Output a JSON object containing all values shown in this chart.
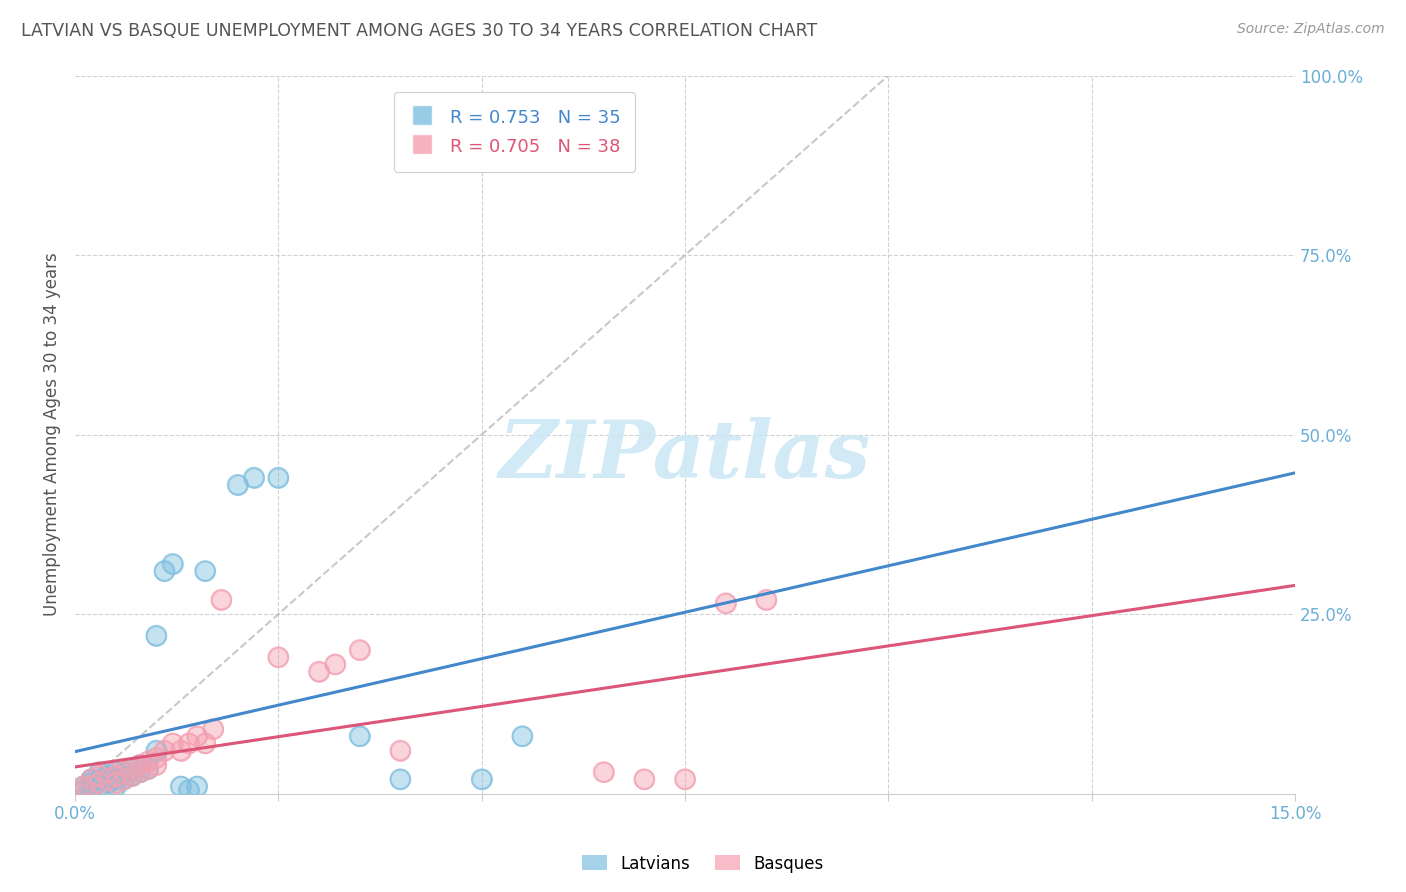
{
  "title": "LATVIAN VS BASQUE UNEMPLOYMENT AMONG AGES 30 TO 34 YEARS CORRELATION CHART",
  "source": "Source: ZipAtlas.com",
  "ylabel": "Unemployment Among Ages 30 to 34 years",
  "xlim": [
    0.0,
    0.15
  ],
  "ylim": [
    0.0,
    1.0
  ],
  "latvian_R": 0.753,
  "latvian_N": 35,
  "basque_R": 0.705,
  "basque_N": 38,
  "latvian_color": "#7fbfdf",
  "basque_color": "#f4a0b0",
  "latvian_line_color": "#4488cc",
  "basque_line_color": "#dd5577",
  "diag_color": "#bbbbbb",
  "watermark": "ZIPatlas",
  "title_color": "#555555",
  "source_color": "#999999",
  "axis_label_color": "#6baed6",
  "grid_color": "#cccccc",
  "latvian_x": [
    0.001,
    0.001,
    0.002,
    0.002,
    0.002,
    0.003,
    0.003,
    0.003,
    0.004,
    0.004,
    0.005,
    0.005,
    0.005,
    0.006,
    0.006,
    0.007,
    0.007,
    0.008,
    0.008,
    0.009,
    0.01,
    0.011,
    0.012,
    0.013,
    0.014,
    0.016,
    0.02,
    0.022,
    0.025,
    0.035,
    0.04,
    0.05,
    0.055,
    0.01,
    0.015
  ],
  "latvian_y": [
    0.005,
    0.01,
    0.005,
    0.015,
    0.02,
    0.01,
    0.02,
    0.03,
    0.015,
    0.025,
    0.01,
    0.02,
    0.03,
    0.02,
    0.03,
    0.025,
    0.035,
    0.03,
    0.04,
    0.035,
    0.06,
    0.31,
    0.32,
    0.01,
    0.005,
    0.31,
    0.43,
    0.44,
    0.44,
    0.08,
    0.02,
    0.02,
    0.08,
    0.22,
    0.01
  ],
  "basque_x": [
    0.001,
    0.001,
    0.002,
    0.002,
    0.003,
    0.003,
    0.004,
    0.004,
    0.005,
    0.005,
    0.006,
    0.006,
    0.007,
    0.007,
    0.008,
    0.008,
    0.009,
    0.009,
    0.01,
    0.01,
    0.011,
    0.012,
    0.013,
    0.014,
    0.015,
    0.016,
    0.017,
    0.018,
    0.025,
    0.03,
    0.032,
    0.035,
    0.04,
    0.065,
    0.07,
    0.075,
    0.08,
    0.085
  ],
  "basque_y": [
    0.005,
    0.01,
    0.01,
    0.02,
    0.015,
    0.025,
    0.02,
    0.03,
    0.015,
    0.025,
    0.02,
    0.03,
    0.025,
    0.035,
    0.03,
    0.04,
    0.035,
    0.045,
    0.04,
    0.05,
    0.06,
    0.07,
    0.06,
    0.07,
    0.08,
    0.07,
    0.09,
    0.27,
    0.19,
    0.17,
    0.18,
    0.2,
    0.06,
    0.03,
    0.02,
    0.02,
    0.265,
    0.27
  ]
}
